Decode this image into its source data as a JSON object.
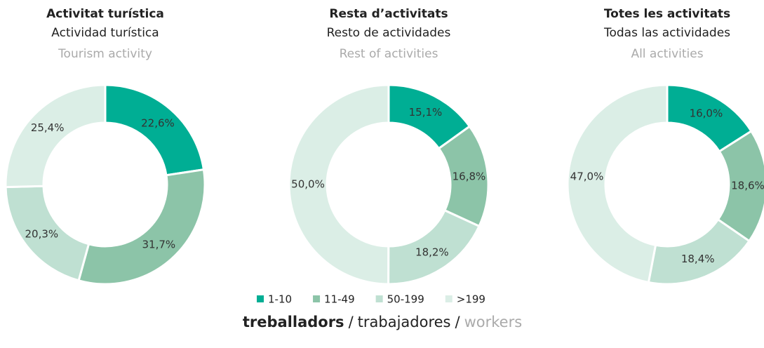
{
  "chart_data": [
    {
      "type": "pie",
      "title": "Activitat turística",
      "subtitle": "Actividad turística",
      "subtitle_en": "Tourism activity",
      "values": [
        22.6,
        31.7,
        20.3,
        25.4
      ],
      "value_labels": [
        "22,6%",
        "31,7%",
        "20,3%",
        "25,4%"
      ]
    },
    {
      "type": "pie",
      "title": "Resta d’activitats",
      "subtitle": "Resto de actividades",
      "subtitle_en": "Rest of activities",
      "values": [
        15.1,
        16.8,
        18.2,
        50.0
      ],
      "value_labels": [
        "15,1%",
        "16,8%",
        "18,2%",
        "50,0%"
      ]
    },
    {
      "type": "pie",
      "title": "Totes les activitats",
      "subtitle": "Todas las actividades",
      "subtitle_en": "All activities",
      "values": [
        16.0,
        18.6,
        18.4,
        47.0
      ],
      "value_labels": [
        "16,0%",
        "18,6%",
        "18,4%",
        "47,0%"
      ]
    }
  ],
  "legend": {
    "categories": [
      "1-10",
      "11-49",
      "50-199",
      ">199"
    ],
    "colors": [
      "#00ae94",
      "#8cc4a8",
      "#bfe0d2",
      "#dbeee6"
    ]
  },
  "footer": [
    "treballadors",
    "/",
    "trabajadores",
    "/",
    "workers"
  ]
}
